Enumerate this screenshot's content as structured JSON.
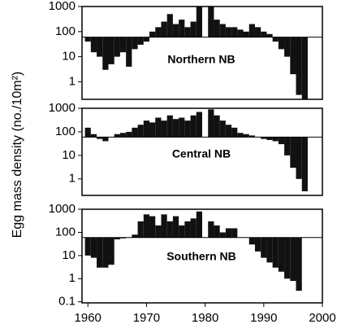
{
  "chart_data": [
    {
      "type": "bar",
      "ylabel": "Egg mass density (no./10m²)",
      "annotation": "Northern NB",
      "log_y": true,
      "baseline": 60,
      "color": "#111111",
      "x": [
        1960,
        1961,
        1962,
        1963,
        1964,
        1965,
        1966,
        1967,
        1968,
        1969,
        1970,
        1971,
        1972,
        1973,
        1974,
        1975,
        1976,
        1977,
        1978,
        1979,
        1980,
        1981,
        1982,
        1983,
        1984,
        1985,
        1986,
        1987,
        1988,
        1989,
        1990,
        1991,
        1992,
        1993,
        1994,
        1995,
        1996,
        1997
      ],
      "values": [
        40,
        15,
        10,
        3,
        5,
        10,
        15,
        4,
        20,
        30,
        40,
        100,
        150,
        250,
        500,
        200,
        300,
        150,
        250,
        1000,
        null,
        1000,
        300,
        200,
        150,
        150,
        120,
        100,
        200,
        150,
        100,
        80,
        40,
        20,
        10,
        2,
        0.3,
        0.2
      ],
      "xlim": [
        1959,
        2000
      ],
      "ylim": [
        0.2,
        1000
      ],
      "yticks": [
        1,
        10,
        100,
        1000
      ]
    },
    {
      "type": "bar",
      "annotation": "Central NB",
      "log_y": true,
      "baseline": 60,
      "color": "#111111",
      "x": [
        1960,
        1961,
        1962,
        1963,
        1964,
        1965,
        1966,
        1967,
        1968,
        1969,
        1970,
        1971,
        1972,
        1973,
        1974,
        1975,
        1976,
        1977,
        1978,
        1979,
        1980,
        1981,
        1982,
        1983,
        1984,
        1985,
        1986,
        1987,
        1988,
        1989,
        1990,
        1991,
        1992,
        1993,
        1994,
        1995,
        1996,
        1997
      ],
      "values": [
        150,
        80,
        50,
        40,
        60,
        80,
        90,
        100,
        150,
        200,
        300,
        250,
        400,
        300,
        500,
        350,
        400,
        300,
        500,
        700,
        null,
        900,
        500,
        300,
        200,
        150,
        90,
        80,
        70,
        60,
        50,
        45,
        40,
        30,
        10,
        3,
        1,
        0.3
      ],
      "xlim": [
        1959,
        2000
      ],
      "ylim": [
        0.2,
        1000
      ],
      "yticks": [
        1,
        10,
        100,
        1000
      ]
    },
    {
      "type": "bar",
      "annotation": "Southern NB",
      "log_y": true,
      "baseline": 60,
      "color": "#111111",
      "x": [
        1960,
        1961,
        1962,
        1963,
        1964,
        1965,
        1966,
        1967,
        1968,
        1969,
        1970,
        1971,
        1972,
        1973,
        1974,
        1975,
        1976,
        1977,
        1978,
        1979,
        1980,
        1981,
        1982,
        1983,
        1984,
        1985,
        1986,
        1987,
        1988,
        1989,
        1990,
        1991,
        1992,
        1993,
        1994,
        1995,
        1996
      ],
      "values": [
        10,
        8,
        3,
        3,
        4,
        50,
        55,
        60,
        80,
        300,
        600,
        500,
        200,
        600,
        300,
        500,
        200,
        300,
        400,
        800,
        null,
        300,
        200,
        100,
        150,
        150,
        60,
        60,
        30,
        15,
        8,
        5,
        3,
        2,
        1,
        0.8,
        0.3
      ],
      "xlim": [
        1959,
        2000
      ],
      "ylim": [
        0.09,
        1000
      ],
      "yticks": [
        0.1,
        1,
        10,
        100,
        1000
      ],
      "xticks": [
        1960,
        1970,
        1980,
        1990,
        2000
      ]
    }
  ]
}
